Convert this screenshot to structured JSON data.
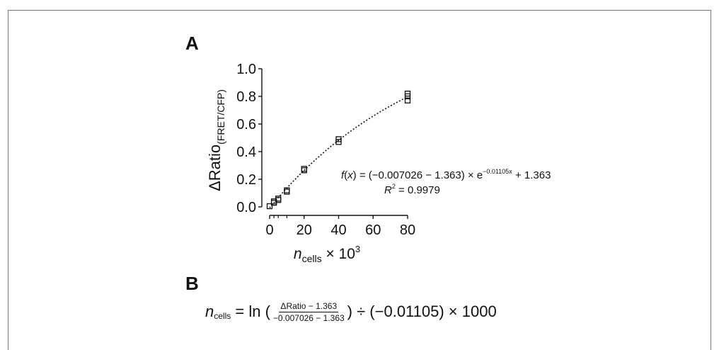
{
  "panel_a_label": "A",
  "panel_b_label": "B",
  "chart_data": {
    "type": "scatter",
    "xlabel": "n_cells × 10^3",
    "xlabel_parts": {
      "var": "n",
      "sub": "cells",
      "rest": " × 10",
      "sup": "3"
    },
    "ylabel": "ΔRatio(FRET/CFP)",
    "ylabel_parts": {
      "main": "ΔRatio",
      "sub": "(FRET/CFP)"
    },
    "xlim": [
      0,
      80
    ],
    "ylim": [
      0.0,
      1.0
    ],
    "x_ticks": [
      0,
      20,
      40,
      60,
      80
    ],
    "x_tick_labels": [
      "0",
      "20",
      "40",
      "60",
      "80"
    ],
    "y_ticks": [
      0.0,
      0.2,
      0.4,
      0.6,
      0.8,
      1.0
    ],
    "y_tick_labels": [
      "0.0",
      "0.2",
      "0.4",
      "0.6",
      "0.8",
      "1.0"
    ],
    "x_minor_ticks": [
      2.5,
      5,
      10
    ],
    "series": [
      {
        "marker": "open-square",
        "points": [
          {
            "x": 0,
            "y": 0.005
          },
          {
            "x": 2.5,
            "y": 0.03
          },
          {
            "x": 2.5,
            "y": 0.04
          },
          {
            "x": 5,
            "y": 0.05
          },
          {
            "x": 5,
            "y": 0.06
          },
          {
            "x": 10,
            "y": 0.11
          },
          {
            "x": 10,
            "y": 0.12
          },
          {
            "x": 20,
            "y": 0.265
          },
          {
            "x": 20,
            "y": 0.275
          },
          {
            "x": 40,
            "y": 0.47
          },
          {
            "x": 40,
            "y": 0.49
          },
          {
            "x": 80,
            "y": 0.77
          },
          {
            "x": 80,
            "y": 0.8
          },
          {
            "x": 80,
            "y": 0.82
          }
        ]
      }
    ],
    "fit": {
      "style": "dotted",
      "a": -0.007026,
      "b": 1.363,
      "k": -0.01105,
      "x_range": [
        0,
        80
      ]
    },
    "grid": false,
    "annotation": {
      "fx": "f",
      "x_var": "x",
      "eq_body": " = (−0.007026 − 1.363) × e",
      "exponent": "−0.01105x",
      "tail": " + 1.363",
      "r2_var": "R",
      "r2_sup": "2",
      "r2_value": " = 0.9979"
    }
  },
  "formula_b": {
    "n_var": "n",
    "n_sub": "cells",
    "eq_ln": " = ln (",
    "frac_num": "ΔRatio − 1.363",
    "frac_den": "−0.007026 − 1.363",
    "tail": ") ÷ (−0.01105) × 1000"
  }
}
